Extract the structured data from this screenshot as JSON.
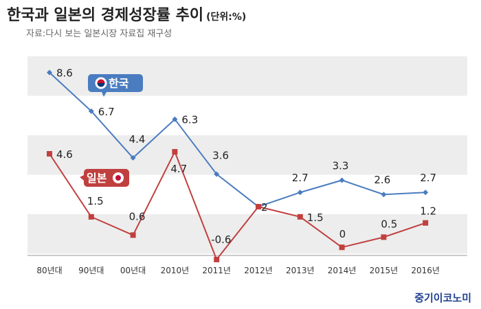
{
  "header": {
    "title": "한국과 일본의 경제성장률 추이",
    "unit": "(단위:%)",
    "source": "자료:다시 보는 일본시장 자료집 재구성"
  },
  "brand": "중기이코노미",
  "colors": {
    "korea": "#4a7cc0",
    "japan": "#c0403f",
    "band": "#ededed"
  },
  "chart_data": {
    "type": "line",
    "categories": [
      "80년대",
      "90년대",
      "00년대",
      "2010년",
      "2011년",
      "2012년",
      "2013년",
      "2014년",
      "2015년",
      "2016년"
    ],
    "series": [
      {
        "name": "한국",
        "values": [
          8.6,
          6.7,
          4.4,
          6.3,
          3.6,
          2,
          2.7,
          3.3,
          2.6,
          2.7
        ],
        "labels": [
          "8.6",
          "6.7",
          "4.4",
          "6.3",
          "3.6",
          "",
          "2.7",
          "3.3",
          "2.6",
          "2.7"
        ],
        "color": "#4a7cc0",
        "marker": "diamond"
      },
      {
        "name": "일본",
        "values": [
          4.6,
          1.5,
          0.6,
          4.7,
          -0.6,
          2,
          1.5,
          0,
          0.5,
          1.2
        ],
        "labels": [
          "4.6",
          "1.5",
          "0.6",
          "4.7",
          "-0.6",
          "2",
          "1.5",
          "0",
          "0.5",
          "1.2"
        ],
        "color": "#c0403f",
        "marker": "square"
      }
    ],
    "ylim": [
      -1,
      10
    ],
    "grid": false,
    "legend": "callouts"
  }
}
